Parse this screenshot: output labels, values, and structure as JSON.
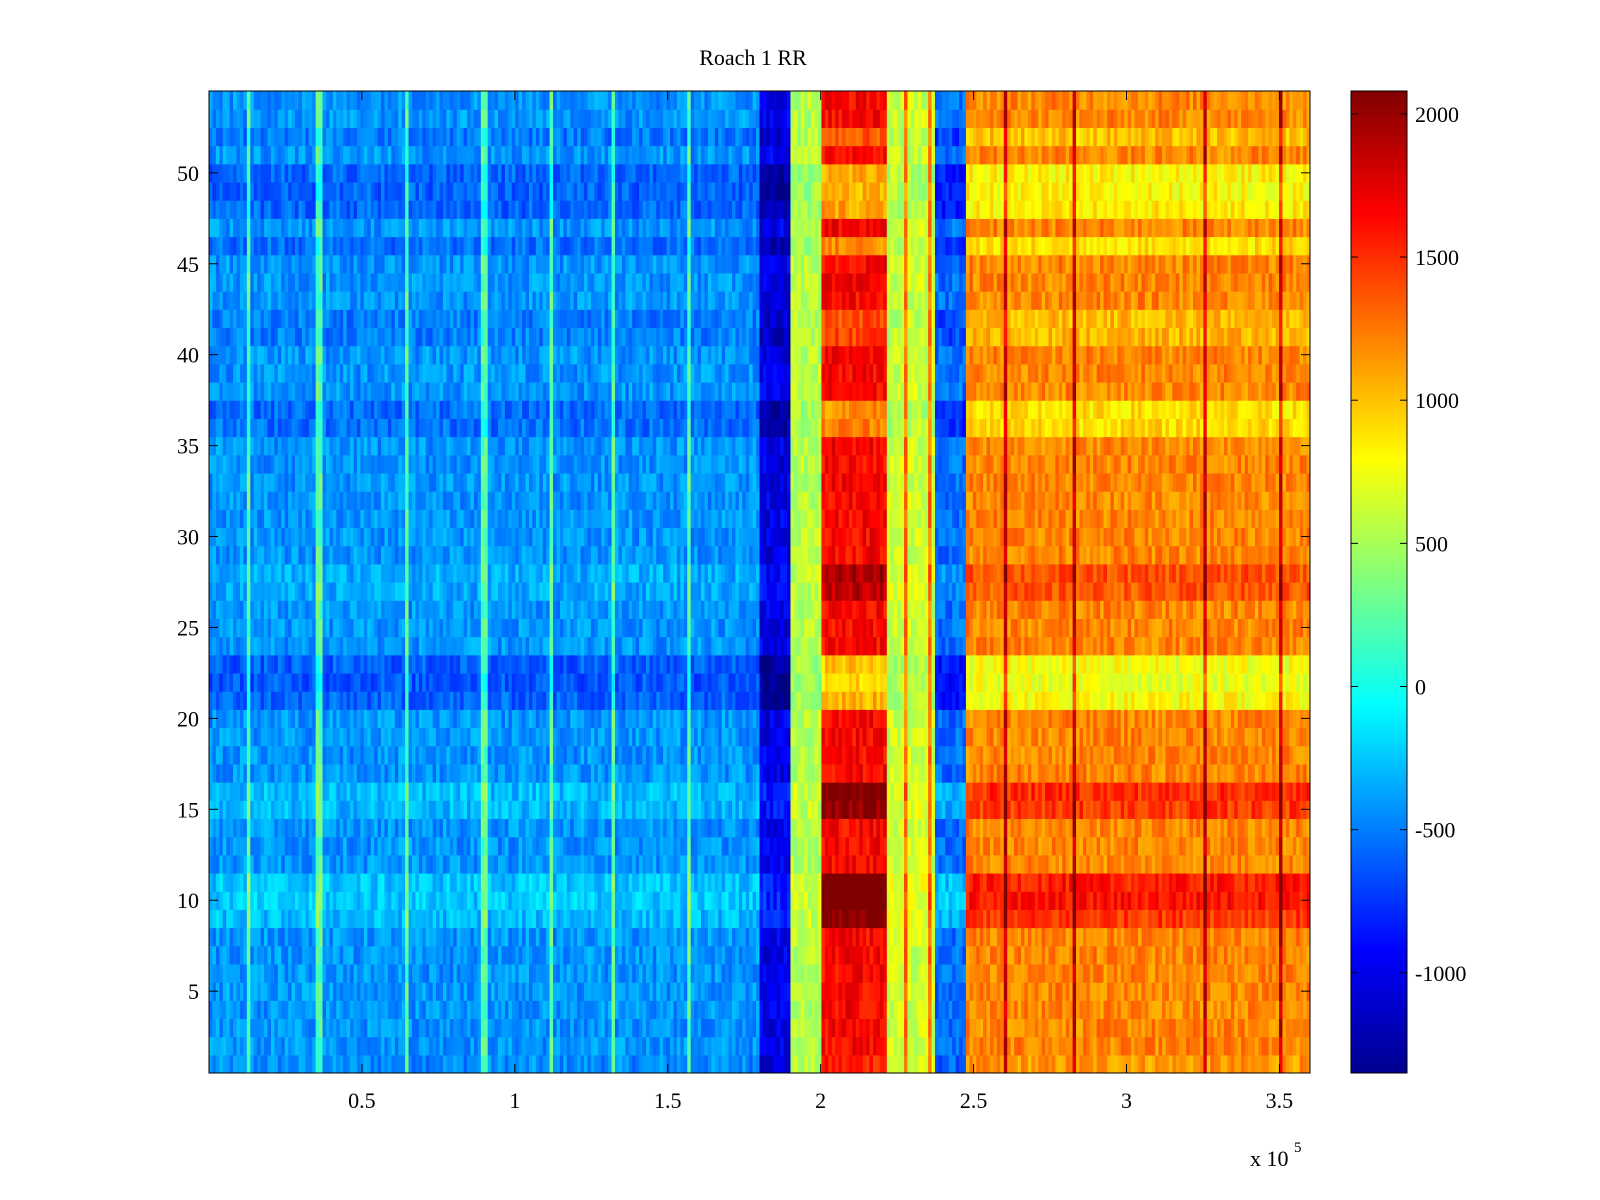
{
  "chart_data": {
    "type": "heatmap",
    "title": "Roach 1 RR",
    "xlabel": "",
    "ylabel": "",
    "x_exponent_label": "x 10",
    "x_exponent_power": "5",
    "xlim": [
      0,
      3.6
    ],
    "ylim": [
      0.5,
      54.5
    ],
    "x_ticks": [
      0.5,
      1,
      1.5,
      2,
      2.5,
      3,
      3.5
    ],
    "x_tick_labels": [
      "0.5",
      "1",
      "1.5",
      "2",
      "2.5",
      "3",
      "3.5"
    ],
    "y_ticks": [
      5,
      10,
      15,
      20,
      25,
      30,
      35,
      40,
      45,
      50
    ],
    "y_tick_labels": [
      "5",
      "10",
      "15",
      "20",
      "25",
      "30",
      "35",
      "40",
      "45",
      "50"
    ],
    "rows": 54,
    "colorbar": {
      "colormap": "jet",
      "clim": [
        -1350,
        2080
      ],
      "ticks": [
        -1000,
        -500,
        0,
        500,
        1000,
        1500,
        2000
      ],
      "tick_labels": [
        "-1000",
        "-500",
        "0",
        "500",
        "1000",
        "1500",
        "2000"
      ]
    },
    "column_segments": [
      {
        "x_start": 0.0,
        "x_end": 1.8,
        "base_value": -420,
        "row_effect_scale": 0.35
      },
      {
        "x_start": 1.8,
        "x_end": 1.9,
        "base_value": -1000,
        "row_effect_scale": 0.45
      },
      {
        "x_start": 1.9,
        "x_end": 2.0,
        "base_value": 550,
        "row_effect_scale": 0.15
      },
      {
        "x_start": 2.0,
        "x_end": 2.22,
        "base_value": 1650,
        "row_effect_scale": 1.2
      },
      {
        "x_start": 2.22,
        "x_end": 2.37,
        "base_value": 620,
        "row_effect_scale": 0.2
      },
      {
        "x_start": 2.37,
        "x_end": 2.48,
        "base_value": -550,
        "row_effect_scale": 0.6
      },
      {
        "x_start": 2.48,
        "x_end": 3.6,
        "base_value": 1200,
        "row_effect_scale": 0.8
      }
    ],
    "row_effects": [
      {
        "row": 1,
        "effect": -80
      },
      {
        "row": 9,
        "effect": 350
      },
      {
        "row": 10,
        "effect": 500
      },
      {
        "row": 11,
        "effect": 450
      },
      {
        "row": 15,
        "effect": 320
      },
      {
        "row": 16,
        "effect": 380
      },
      {
        "row": 21,
        "effect": -500
      },
      {
        "row": 22,
        "effect": -600
      },
      {
        "row": 23,
        "effect": -550
      },
      {
        "row": 27,
        "effect": 200
      },
      {
        "row": 28,
        "effect": 230
      },
      {
        "row": 36,
        "effect": -350
      },
      {
        "row": 37,
        "effect": -400
      },
      {
        "row": 41,
        "effect": -200
      },
      {
        "row": 42,
        "effect": -220
      },
      {
        "row": 46,
        "effect": -380
      },
      {
        "row": 48,
        "effect": -450
      },
      {
        "row": 49,
        "effect": -500
      },
      {
        "row": 50,
        "effect": -480
      },
      {
        "row": 52,
        "effect": -250
      }
    ],
    "spike_columns_x": [
      0.13,
      0.36,
      0.65,
      0.9,
      1.12,
      1.32,
      1.57,
      2.28,
      2.36,
      2.6,
      2.83,
      3.26,
      3.5
    ]
  }
}
